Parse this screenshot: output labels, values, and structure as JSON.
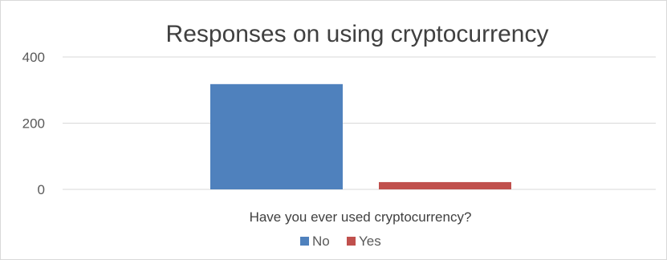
{
  "chart_data": {
    "type": "bar",
    "title": "Responses on using cryptocurrency",
    "xlabel": "Have you ever used cryptocurrency?",
    "ylabel": "",
    "ylim": [
      0,
      400
    ],
    "yticks": [
      0,
      200,
      400
    ],
    "grid": true,
    "legend_position": "bottom",
    "categories": [
      "Have you ever used cryptocurrency?"
    ],
    "series": [
      {
        "name": "No",
        "values": [
          318
        ],
        "color": "#4F81BD"
      },
      {
        "name": "Yes",
        "values": [
          22
        ],
        "color": "#C0504D"
      }
    ]
  }
}
